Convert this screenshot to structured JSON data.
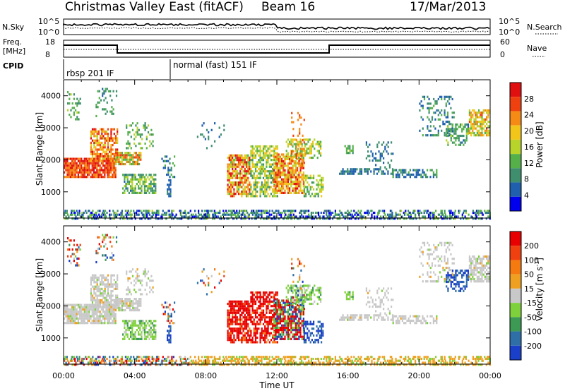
{
  "header": {
    "site": "Christmas Valley East (fitACF)",
    "beam": "Beam 16",
    "date": "17/Mar/2013"
  },
  "top_panels": {
    "nsky_label": "N.Sky",
    "nsky_ticks": [
      "10^5",
      "10^0"
    ],
    "nsearch_label": "N.Search",
    "nsearch_ticks": [
      "10^5",
      "10^0"
    ],
    "freq_label": [
      "Freq.",
      "[MHz]"
    ],
    "freq_ticks": [
      "18",
      "8"
    ],
    "nave_label": "Nave",
    "nave_ticks": [
      "60",
      "0"
    ],
    "cpid_label": "CPID",
    "cpid_segments": [
      "rbsp 201 IF",
      "normal (fast) 151 IF"
    ]
  },
  "chart_data": [
    {
      "type": "heatmap",
      "title": "",
      "xlabel": "Time UT",
      "ylabel": "Slant Range [km]",
      "x_ticks": [
        "00:00",
        "04:00",
        "08:00",
        "12:00",
        "16:00",
        "20:00",
        "00:00"
      ],
      "xlim": [
        0,
        24
      ],
      "y_ticks": [
        "1000",
        "2000",
        "3000",
        "4000"
      ],
      "ylim": [
        180,
        4500
      ],
      "colorbar": {
        "label": "Power [dB]",
        "ticks": [
          "4",
          "8",
          "12",
          "16",
          "20",
          "24",
          "28"
        ],
        "range": [
          0,
          30
        ],
        "colors": [
          "#0000ee",
          "#1f5fae",
          "#3f8f6f",
          "#55b04a",
          "#b8d32a",
          "#f2c51b",
          "#f58a14",
          "#ef4010",
          "#e01010"
        ]
      }
    },
    {
      "type": "heatmap",
      "title": "",
      "xlabel": "Time UT",
      "ylabel": "Slant Range [km]",
      "x_ticks": [
        "00:00",
        "04:00",
        "08:00",
        "12:00",
        "16:00",
        "20:00",
        "00:00"
      ],
      "xlim": [
        0,
        24
      ],
      "y_ticks": [
        "1000",
        "2000",
        "3000",
        "4000"
      ],
      "ylim": [
        180,
        4500
      ],
      "colorbar": {
        "label": "Velocity [m s-1]",
        "ticks": [
          "200",
          "100",
          "50",
          "15",
          "-15",
          "-50",
          "-100",
          "-200"
        ],
        "colors": [
          "#1a3fc8",
          "#2f6fa8",
          "#3d9a55",
          "#7fd13c",
          "#c8c8c8",
          "#f0a020",
          "#f57a10",
          "#f04010",
          "#e80000"
        ]
      }
    }
  ]
}
